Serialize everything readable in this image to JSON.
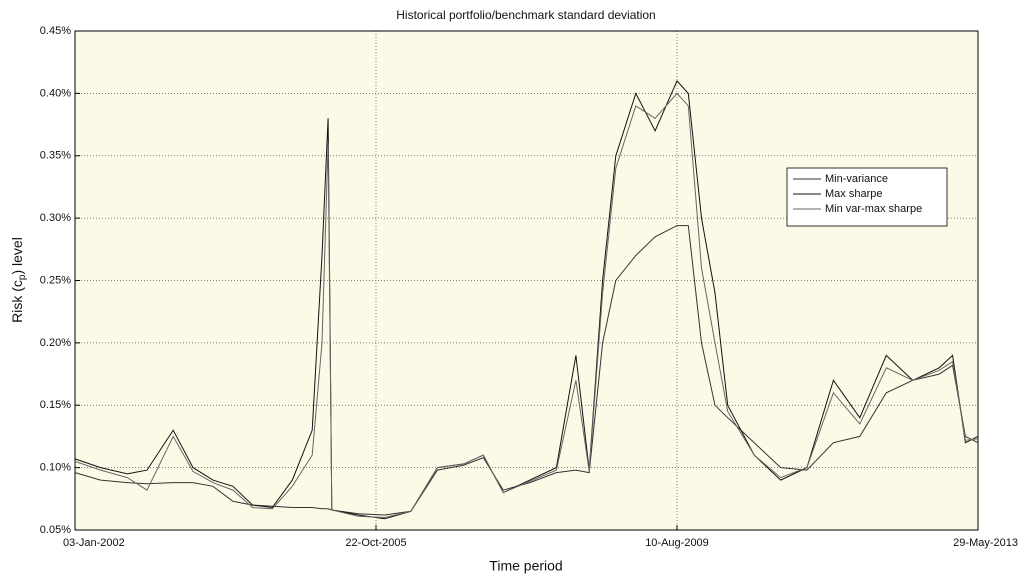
{
  "chart_data": {
    "type": "line",
    "title": "Historical portfolio/benchmark standard deviation",
    "xlabel": "Time period",
    "ylabel": {
      "text": "Risk (c",
      "sub": "p",
      "after": ") level"
    },
    "x": [
      "2002-01-03",
      "2002-05-01",
      "2002-09-01",
      "2002-12-01",
      "2003-04-01",
      "2003-07-01",
      "2003-10-01",
      "2004-01-01",
      "2004-04-01",
      "2004-07-01",
      "2004-10-01",
      "2005-01-01",
      "2005-02-15",
      "2005-03-15",
      "2005-04-01",
      "2005-08-01",
      "2005-12-01",
      "2006-04-01",
      "2006-08-01",
      "2006-12-01",
      "2007-03-01",
      "2007-06-01",
      "2007-10-01",
      "2008-02-01",
      "2008-05-01",
      "2008-07-01",
      "2008-09-01",
      "2008-11-01",
      "2009-02-01",
      "2009-05-01",
      "2009-08-10",
      "2009-10-01",
      "2009-12-01",
      "2010-02-01",
      "2010-04-01",
      "2010-08-01",
      "2010-12-01",
      "2011-04-01",
      "2011-08-01",
      "2011-12-01",
      "2012-04-01",
      "2012-08-01",
      "2012-12-01",
      "2013-02-01",
      "2013-04-01",
      "2013-05-29"
    ],
    "series": [
      {
        "name": "Min-variance",
        "color": "#333333",
        "values": [
          0.096,
          0.09,
          0.088,
          0.087,
          0.088,
          0.088,
          0.085,
          0.073,
          0.07,
          0.069,
          0.068,
          0.068,
          0.067,
          0.067,
          0.066,
          0.063,
          0.062,
          0.065,
          0.098,
          0.102,
          0.108,
          0.082,
          0.088,
          0.096,
          0.098,
          0.096,
          0.2,
          0.25,
          0.27,
          0.285,
          0.294,
          0.294,
          0.2,
          0.15,
          0.14,
          0.12,
          0.1,
          0.098,
          0.12,
          0.125,
          0.16,
          0.17,
          0.175,
          0.182,
          0.125,
          0.12
        ]
      },
      {
        "name": "Max sharpe",
        "color": "#111111",
        "values": [
          0.107,
          0.1,
          0.095,
          0.098,
          0.13,
          0.1,
          0.09,
          0.085,
          0.07,
          0.068,
          0.09,
          0.13,
          0.27,
          0.38,
          0.066,
          0.062,
          0.059,
          0.065,
          0.1,
          0.103,
          0.11,
          0.08,
          0.09,
          0.1,
          0.19,
          0.098,
          0.25,
          0.35,
          0.4,
          0.37,
          0.41,
          0.4,
          0.3,
          0.24,
          0.15,
          0.11,
          0.09,
          0.1,
          0.17,
          0.14,
          0.19,
          0.17,
          0.18,
          0.19,
          0.12,
          0.125
        ]
      },
      {
        "name": "Min var-max sharpe",
        "color": "#666666",
        "values": [
          0.105,
          0.098,
          0.092,
          0.082,
          0.125,
          0.097,
          0.088,
          0.082,
          0.068,
          0.067,
          0.085,
          0.11,
          0.2,
          0.36,
          0.066,
          0.061,
          0.06,
          0.065,
          0.1,
          0.103,
          0.11,
          0.08,
          0.089,
          0.098,
          0.17,
          0.097,
          0.24,
          0.34,
          0.39,
          0.38,
          0.4,
          0.39,
          0.26,
          0.2,
          0.145,
          0.11,
          0.092,
          0.1,
          0.16,
          0.135,
          0.18,
          0.17,
          0.178,
          0.185,
          0.122,
          0.123
        ]
      }
    ],
    "xlim": [
      "2002-01-03",
      "2013-05-29"
    ],
    "xticks": [
      {
        "value": "2002-01-03",
        "label": "03-Jan-2002"
      },
      {
        "value": "2005-10-22",
        "label": "22-Oct-2005"
      },
      {
        "value": "2009-08-10",
        "label": "10-Aug-2009"
      },
      {
        "value": "2013-05-29",
        "label": "29-May-2013"
      }
    ],
    "ylim": [
      0.05,
      0.45
    ],
    "yticks": [
      {
        "value": 0.05,
        "label": "0.05%"
      },
      {
        "value": 0.1,
        "label": "0.10%"
      },
      {
        "value": 0.15,
        "label": "0.15%"
      },
      {
        "value": 0.2,
        "label": "0.20%"
      },
      {
        "value": 0.25,
        "label": "0.25%"
      },
      {
        "value": 0.3,
        "label": "0.30%"
      },
      {
        "value": 0.35,
        "label": "0.35%"
      },
      {
        "value": 0.4,
        "label": "0.40%"
      },
      {
        "value": 0.45,
        "label": "0.45%"
      }
    ],
    "grid": true,
    "legend_loc": "center right",
    "background": "#fcfae6"
  }
}
